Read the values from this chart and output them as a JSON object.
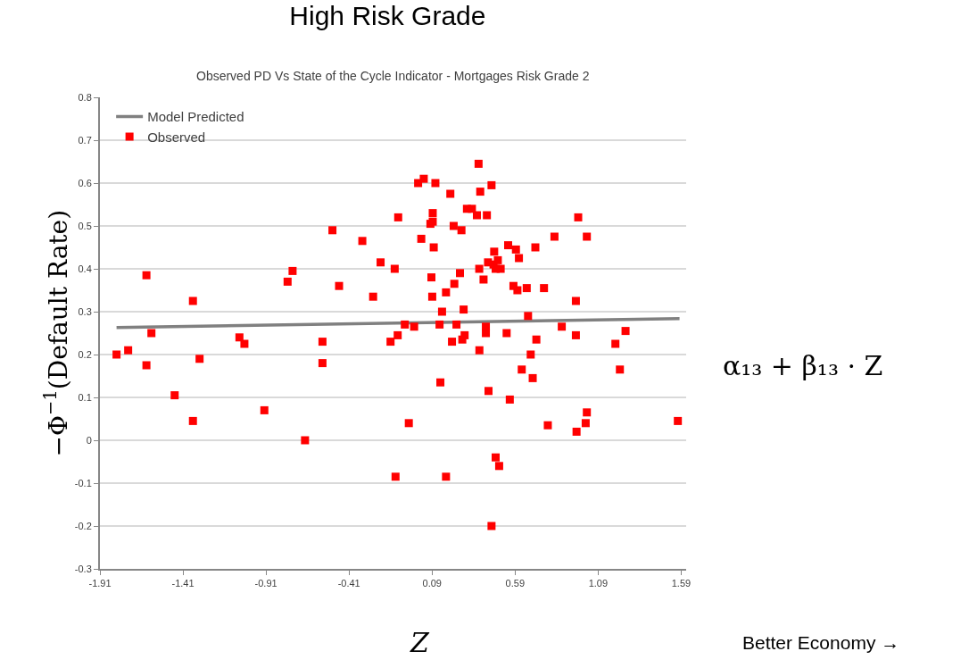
{
  "chart_data": {
    "type": "scatter",
    "title": "High Risk Grade",
    "subtitle": "Observed PD Vs State of the Cycle Indicator - Mortgages Risk Grade 2",
    "xlabel": "Z",
    "ylabel": "−Φ$^{−1}$(Default Rate)",
    "annotations": [
      "α₁₃ + β₁₃ · Z",
      "Better Economy →"
    ],
    "series": [
      {
        "name": "Model Predicted",
        "type": "line",
        "color": "#808080",
        "x": [
          -1.81,
          1.58
        ],
        "values": [
          0.263,
          0.284
        ]
      },
      {
        "name": "Observed",
        "color": "#ff0000",
        "marker": "square",
        "x": [
          -1.81,
          -1.74,
          -1.63,
          -1.6,
          -1.63,
          -1.46,
          -1.35,
          -1.35,
          -1.31,
          -1.07,
          -1.04,
          -0.92,
          -0.78,
          -0.75,
          -0.675,
          -0.57,
          -0.57,
          -0.51,
          -0.47,
          -0.33,
          -0.265,
          -0.22,
          -0.16,
          -0.135,
          -0.13,
          -0.117,
          -0.114,
          -0.074,
          -0.05,
          -0.018,
          0.006,
          0.04,
          0.11,
          0.094,
          0.094,
          0.08,
          0.025,
          0.1,
          0.086,
          0.091,
          0.135,
          0.14,
          0.15,
          0.174,
          0.174,
          0.2,
          0.21,
          0.22,
          0.224,
          0.237,
          0.258,
          0.267,
          0.272,
          0.286,
          0.28,
          0.3,
          0.33,
          0.36,
          0.37,
          0.38,
          0.374,
          0.375,
          0.4,
          0.414,
          0.414,
          0.42,
          0.427,
          0.43,
          0.448,
          0.448,
          0.46,
          0.464,
          0.473,
          0.473,
          0.486,
          0.494,
          0.503,
          0.539,
          0.548,
          0.558,
          0.58,
          0.595,
          0.604,
          0.613,
          0.63,
          0.66,
          0.668,
          0.684,
          0.696,
          0.712,
          0.718,
          0.764,
          0.787,
          0.827,
          0.871,
          0.956,
          0.956,
          0.96,
          0.97,
          1.015,
          1.022,
          1.022,
          1.194,
          1.221,
          1.255,
          1.57
        ],
        "values": [
          0.2,
          0.21,
          0.175,
          0.25,
          0.385,
          0.105,
          0.325,
          0.045,
          0.19,
          0.24,
          0.225,
          0.07,
          0.37,
          0.395,
          0.0,
          0.18,
          0.23,
          0.49,
          0.36,
          0.465,
          0.335,
          0.415,
          0.23,
          0.4,
          -0.085,
          0.245,
          0.52,
          0.27,
          0.04,
          0.265,
          0.6,
          0.61,
          0.6,
          0.53,
          0.51,
          0.505,
          0.47,
          0.45,
          0.38,
          0.335,
          0.27,
          0.135,
          0.3,
          0.345,
          -0.085,
          0.575,
          0.23,
          0.5,
          0.365,
          0.27,
          0.39,
          0.49,
          0.235,
          0.245,
          0.305,
          0.54,
          0.54,
          0.525,
          0.645,
          0.58,
          0.4,
          0.21,
          0.375,
          0.265,
          0.25,
          0.525,
          0.415,
          0.115,
          0.595,
          -0.2,
          0.41,
          0.44,
          0.4,
          -0.04,
          0.42,
          -0.06,
          0.4,
          0.25,
          0.455,
          0.095,
          0.36,
          0.445,
          0.35,
          0.425,
          0.165,
          0.355,
          0.29,
          0.2,
          0.145,
          0.45,
          0.235,
          0.355,
          0.035,
          0.475,
          0.265,
          0.325,
          0.245,
          0.02,
          0.52,
          0.04,
          0.065,
          0.475,
          0.225,
          0.165,
          0.255,
          0.045
        ]
      }
    ],
    "xlim": [
      -1.91,
      1.62
    ],
    "xticks": [
      -1.91,
      -1.41,
      -0.91,
      -0.41,
      0.09,
      0.59,
      1.09,
      1.59
    ],
    "ylim": [
      -0.3,
      0.8
    ],
    "yticks": [
      -0.3,
      -0.2,
      -0.1,
      0,
      0.1,
      0.2,
      0.3,
      0.4,
      0.5,
      0.6,
      0.7,
      0.8
    ],
    "grid": "y",
    "legend": "top left"
  }
}
